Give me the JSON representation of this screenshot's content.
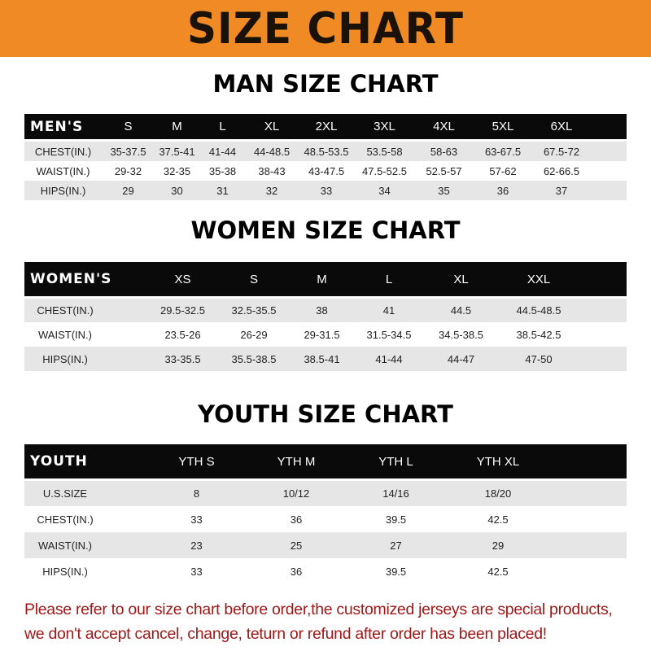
{
  "banner": {
    "title": "SIZE CHART",
    "color": "#f08a24"
  },
  "men": {
    "title": "MAN SIZE CHART",
    "header": [
      "MEN'S",
      "S",
      "M",
      "L",
      "XL",
      "2XL",
      "3XL",
      "4XL",
      "5XL",
      "6XL"
    ],
    "rows": [
      [
        "CHEST(IN.)",
        "35-37.5",
        "37.5-41",
        "41-44",
        "44-48.5",
        "48.5-53.5",
        "53.5-58",
        "58-63",
        "63-67.5",
        "67.5-72"
      ],
      [
        "WAIST(IN.)",
        "29-32",
        "32-35",
        "35-38",
        "38-43",
        "43-47.5",
        "47.5-52.5",
        "52.5-57",
        "57-62",
        "62-66.5"
      ],
      [
        "HIPS(IN.)",
        "29",
        "30",
        "31",
        "32",
        "33",
        "34",
        "35",
        "36",
        "37"
      ]
    ]
  },
  "women": {
    "title": "WOMEN SIZE CHART",
    "header": [
      "WOMEN'S",
      "XS",
      "S",
      "M",
      "L",
      "XL",
      "XXL"
    ],
    "rows": [
      [
        "CHEST(IN.)",
        "29.5-32.5",
        "32.5-35.5",
        "38",
        "41",
        "44.5",
        "44.5-48.5"
      ],
      [
        "WAIST(IN.)",
        "23.5-26",
        "26-29",
        "29-31.5",
        "31.5-34.5",
        "34.5-38.5",
        "38.5-42.5"
      ],
      [
        "HIPS(IN.)",
        "33-35.5",
        "35.5-38.5",
        "38.5-41",
        "41-44",
        "44-47",
        "47-50"
      ]
    ]
  },
  "youth": {
    "title": "YOUTH SIZE CHART",
    "header": [
      "YOUTH",
      "YTH S",
      "YTH M",
      "YTH L",
      "YTH XL"
    ],
    "rows": [
      [
        "U.S.SIZE",
        "8",
        "10/12",
        "14/16",
        "18/20"
      ],
      [
        "CHEST(IN.)",
        "33",
        "36",
        "39.5",
        "42.5"
      ],
      [
        "WAIST(IN.)",
        "23",
        "25",
        "27",
        "29"
      ],
      [
        "HIPS(IN.)",
        "33",
        "36",
        "39.5",
        "42.5"
      ]
    ]
  },
  "note": {
    "line1": "Please refer to our size chart before order,the customized jerseys are special products,",
    "line2": "we don't accept cancel, change, teturn or refund after order has been placed!",
    "color": "#a01818"
  }
}
